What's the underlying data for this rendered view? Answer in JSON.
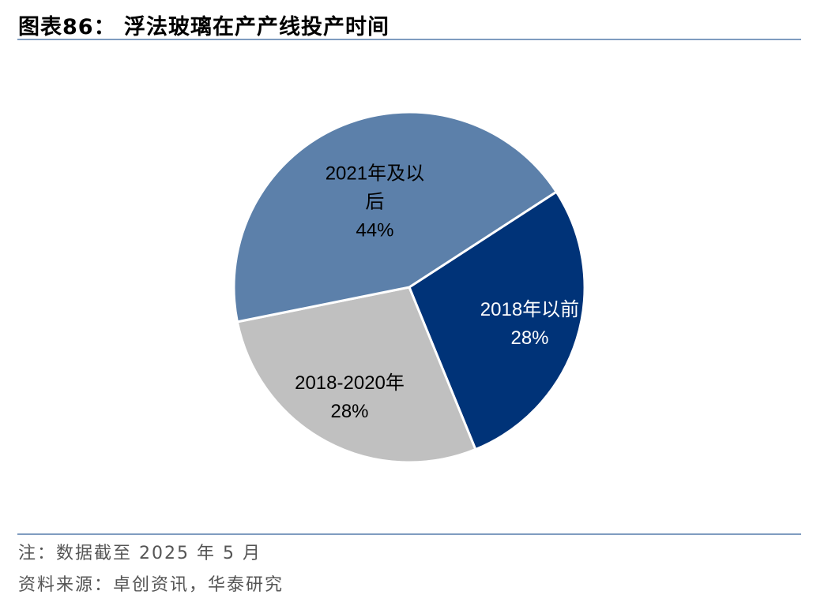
{
  "header": {
    "title": "图表86： 浮法玻璃在产产线投产时间"
  },
  "footer": {
    "note": "注：数据截至 2025 年 5 月",
    "source": "资料来源：卓创资讯，华泰研究"
  },
  "chart_data": {
    "type": "pie",
    "start_angle_deg": 57,
    "direction": "clockwise",
    "slices": [
      {
        "label_lines": [
          "2018年以前"
        ],
        "value": 28,
        "value_label": "28%",
        "color": "#003378",
        "text_color": "#ffffff"
      },
      {
        "label_lines": [
          "2018-2020年"
        ],
        "value": 28,
        "value_label": "28%",
        "color": "#c0c0c0",
        "text_color": "#000000"
      },
      {
        "label_lines": [
          "2021年及以",
          "后"
        ],
        "value": 44,
        "value_label": "44%",
        "color": "#5c80aa",
        "text_color": "#000000"
      }
    ]
  }
}
